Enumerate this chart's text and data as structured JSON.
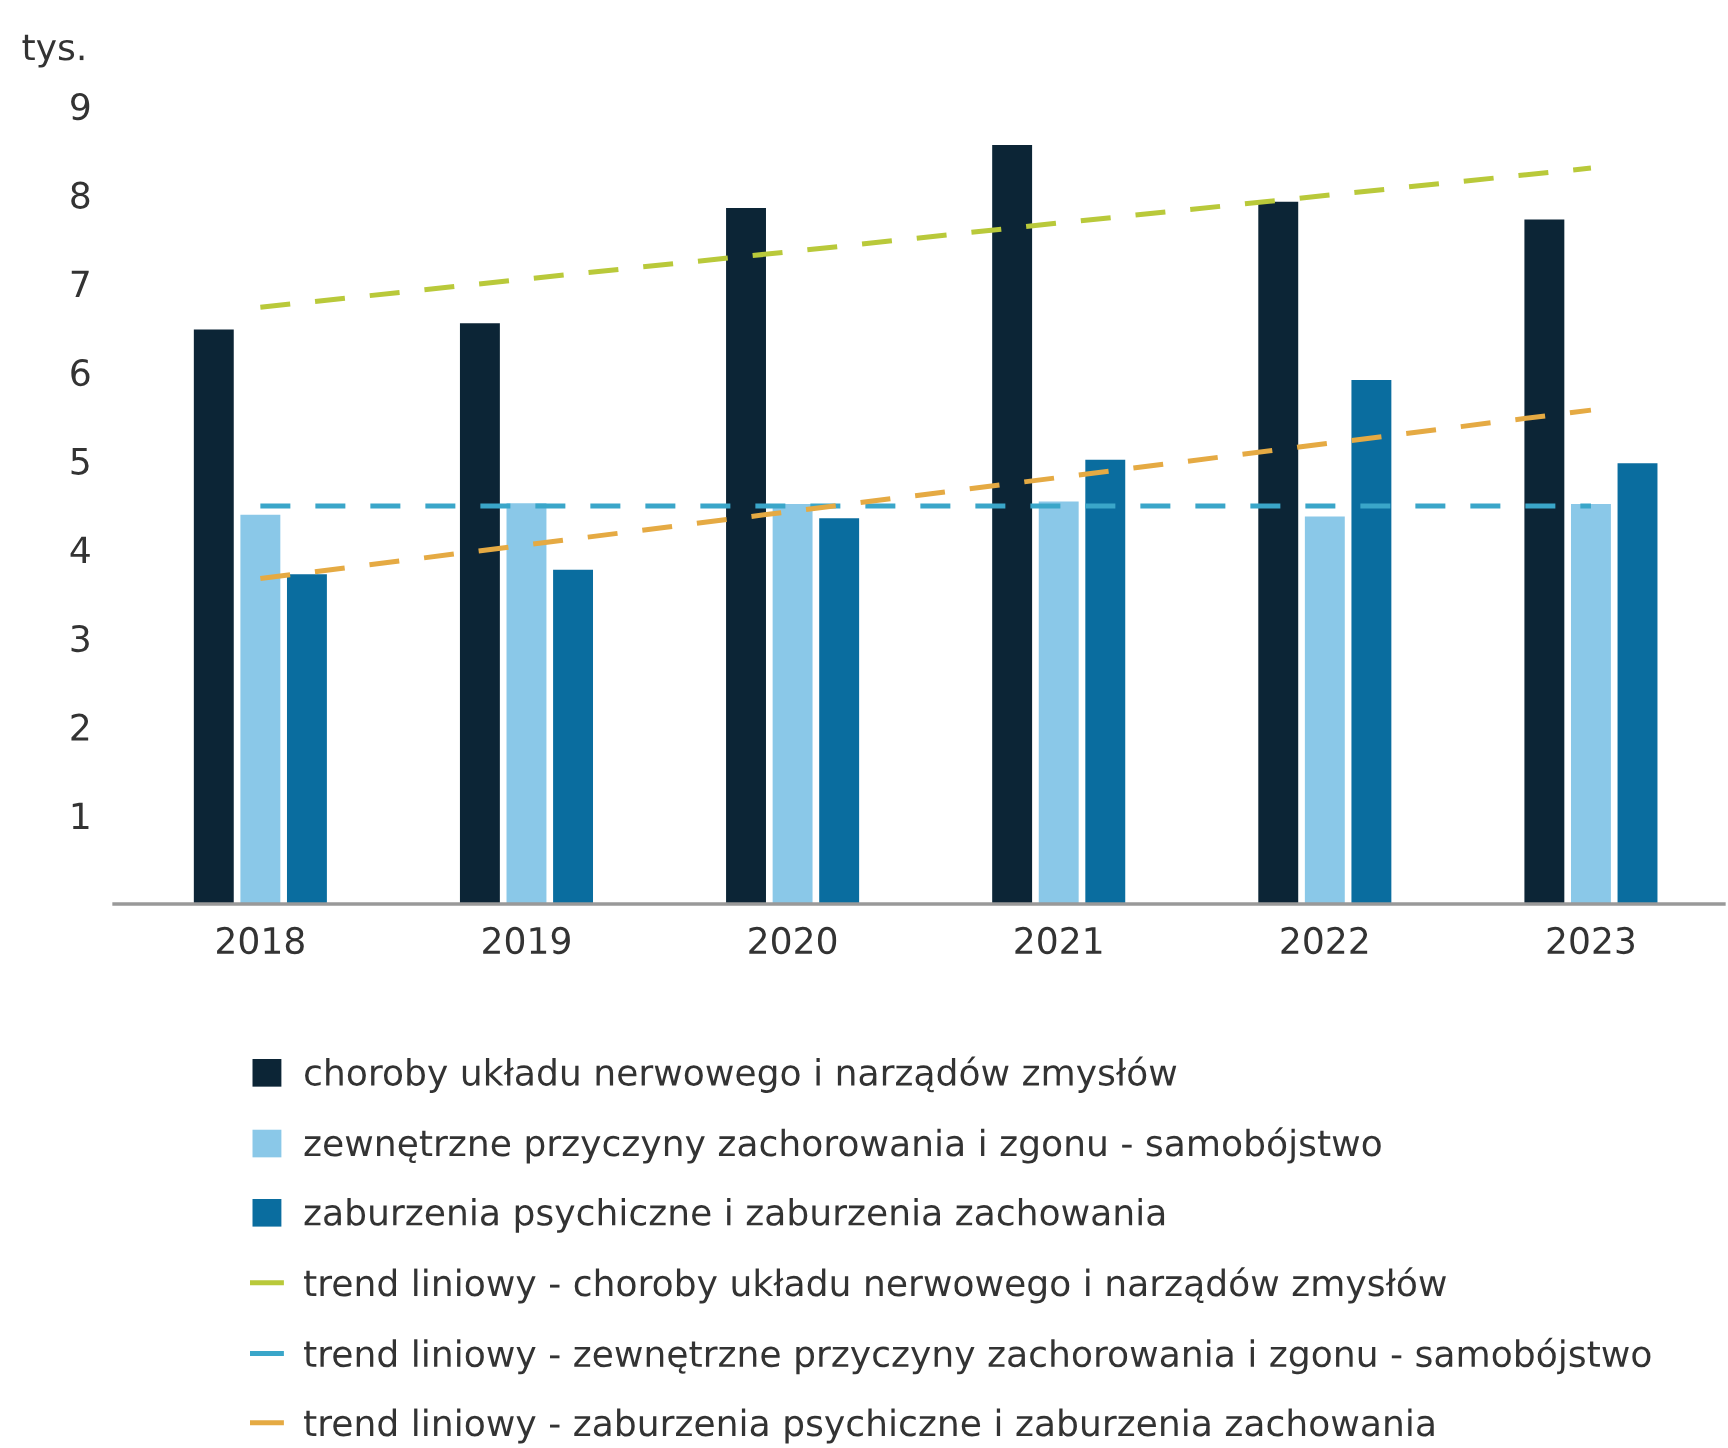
{
  "chart_data": {
    "type": "bar",
    "ylabel": "tys.",
    "categories": [
      "2018",
      "2019",
      "2020",
      "2021",
      "2022",
      "2023"
    ],
    "ylim": [
      0,
      9
    ],
    "yticks": [
      1,
      2,
      3,
      4,
      5,
      6,
      7,
      8,
      9
    ],
    "grid": false,
    "legend": "bottom",
    "series": [
      {
        "name": "choroby układu nerwowego i narządów zmysłów",
        "color": "#0c2536",
        "values": [
          6.48,
          6.55,
          7.85,
          8.56,
          7.92,
          7.72
        ]
      },
      {
        "name": "zewnętrzne przyczyny zachorowania i zgonu - samobójstwo",
        "color": "#8ac8e8",
        "values": [
          4.39,
          4.52,
          4.51,
          4.54,
          4.37,
          4.51
        ]
      },
      {
        "name": "zaburzenia psychiczne i zaburzenia zachowania",
        "color": "#0a6d9f",
        "values": [
          3.72,
          3.77,
          4.35,
          5.01,
          5.91,
          4.97
        ]
      },
      {
        "name": "trend liniowy - choroby układu nerwowego i narządów zmysłów",
        "type": "line",
        "line_style": "dashed",
        "color": "#b9c93a",
        "values": [
          6.73,
          7.05,
          7.36,
          7.68,
          7.99,
          8.3
        ]
      },
      {
        "name": "trend liniowy - zewnętrzne przyczyny zachorowania i zgonu - samobójstwo",
        "type": "line",
        "line_style": "dashed",
        "color": "#3aa6c9",
        "values": [
          4.49,
          4.49,
          4.49,
          4.49,
          4.49,
          4.49
        ]
      },
      {
        "name": "trend liniowy - zaburzenia psychiczne i zaburzenia zachowania",
        "type": "line",
        "line_style": "dashed",
        "color": "#e5aa43",
        "values": [
          3.67,
          4.05,
          4.43,
          4.81,
          5.19,
          5.57
        ]
      }
    ]
  }
}
